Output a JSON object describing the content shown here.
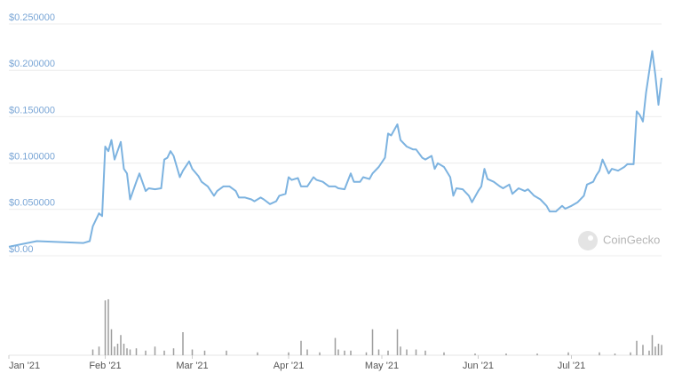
{
  "chart_data": {
    "type": "line",
    "color": "#7db3e0",
    "x": [
      0,
      9,
      17,
      24,
      26,
      27,
      29,
      30,
      31,
      32,
      33,
      34,
      36,
      37,
      38,
      39,
      41,
      42,
      44,
      45,
      47,
      49,
      50,
      51,
      52,
      53,
      55,
      56,
      58,
      59,
      61,
      62,
      64,
      66,
      67,
      69,
      71,
      73,
      74,
      76,
      78,
      79,
      81,
      82,
      84,
      86,
      87,
      89,
      90,
      91,
      93,
      94,
      96,
      98,
      99,
      101,
      103,
      105,
      106,
      108,
      110,
      111,
      113,
      114,
      116,
      117,
      119,
      121,
      122,
      123,
      125,
      126,
      128,
      130,
      131,
      133,
      134,
      136,
      137,
      138,
      140,
      142,
      143,
      144,
      146,
      148,
      149,
      151,
      152,
      153,
      154,
      156,
      158,
      159,
      161,
      162,
      164,
      166,
      167,
      169,
      171,
      173,
      174,
      176,
      178,
      179,
      181,
      183,
      185,
      186,
      188,
      189,
      190,
      191,
      193,
      194,
      196,
      198,
      199,
      201,
      202,
      203,
      204,
      205,
      207,
      208,
      209,
      210
    ],
    "values": [
      0.005,
      0.011,
      0.01,
      0.009,
      0.011,
      0.027,
      0.041,
      0.038,
      0.113,
      0.108,
      0.12,
      0.099,
      0.118,
      0.089,
      0.084,
      0.056,
      0.075,
      0.084,
      0.065,
      0.068,
      0.067,
      0.068,
      0.099,
      0.101,
      0.108,
      0.103,
      0.08,
      0.087,
      0.097,
      0.089,
      0.081,
      0.075,
      0.07,
      0.06,
      0.065,
      0.07,
      0.07,
      0.065,
      0.058,
      0.058,
      0.056,
      0.054,
      0.058,
      0.056,
      0.051,
      0.054,
      0.06,
      0.062,
      0.08,
      0.077,
      0.079,
      0.07,
      0.07,
      0.08,
      0.077,
      0.075,
      0.07,
      0.07,
      0.068,
      0.067,
      0.084,
      0.075,
      0.075,
      0.08,
      0.078,
      0.084,
      0.091,
      0.101,
      0.127,
      0.125,
      0.137,
      0.12,
      0.113,
      0.11,
      0.11,
      0.101,
      0.099,
      0.103,
      0.089,
      0.095,
      0.091,
      0.08,
      0.06,
      0.068,
      0.067,
      0.06,
      0.053,
      0.065,
      0.07,
      0.089,
      0.078,
      0.075,
      0.07,
      0.068,
      0.072,
      0.062,
      0.068,
      0.065,
      0.067,
      0.06,
      0.056,
      0.049,
      0.043,
      0.043,
      0.049,
      0.046,
      0.049,
      0.053,
      0.06,
      0.072,
      0.075,
      0.082,
      0.087,
      0.099,
      0.084,
      0.089,
      0.087,
      0.091,
      0.094,
      0.094,
      0.151,
      0.147,
      0.14,
      0.171,
      0.216,
      0.19,
      0.158,
      0.187
    ],
    "xlim": [
      0,
      210
    ],
    "xticks": [
      {
        "value": 0,
        "label": "Jan '21"
      },
      {
        "value": 31,
        "label": "Feb '21"
      },
      {
        "value": 59,
        "label": "Mar '21"
      },
      {
        "value": 90,
        "label": "Apr '21"
      },
      {
        "value": 120,
        "label": "May '21"
      },
      {
        "value": 151,
        "label": "Jun '21"
      },
      {
        "value": 181,
        "label": "Jul '21"
      }
    ],
    "ylim": [
      0,
      0.25
    ],
    "yticks": [
      {
        "value": 0,
        "label": "$0.00"
      },
      {
        "value": 0.05,
        "label": "$0.050000"
      },
      {
        "value": 0.1,
        "label": "$0.100000"
      },
      {
        "value": 0.15,
        "label": "$0.150000"
      },
      {
        "value": 0.2,
        "label": "$0.200000"
      },
      {
        "value": 0.25,
        "label": "$0.250000"
      }
    ],
    "grid": true,
    "y2lim": [
      0,
      100
    ],
    "volume": {
      "type": "bar",
      "axis": "y2",
      "color": "#9e9e9e",
      "x": [
        27,
        29,
        31,
        32,
        33,
        34,
        35,
        36,
        37,
        38,
        39,
        41,
        44,
        47,
        50,
        53,
        56,
        59,
        63,
        70,
        80,
        90,
        94,
        96,
        100,
        105,
        106,
        108,
        110,
        115,
        117,
        119,
        122,
        125,
        126,
        128,
        131,
        134,
        140,
        150,
        160,
        170,
        180,
        190,
        195,
        200,
        202,
        204,
        206,
        207,
        208,
        209,
        210
      ],
      "values": [
        10,
        15,
        95,
        97,
        45,
        15,
        20,
        35,
        20,
        12,
        10,
        12,
        8,
        15,
        8,
        12,
        40,
        10,
        8,
        8,
        5,
        5,
        25,
        10,
        5,
        30,
        10,
        8,
        8,
        5,
        45,
        10,
        8,
        45,
        15,
        10,
        10,
        8,
        5,
        3,
        3,
        3,
        5,
        5,
        3,
        5,
        25,
        18,
        8,
        35,
        15,
        20,
        18
      ]
    },
    "watermark": "CoinGecko"
  }
}
